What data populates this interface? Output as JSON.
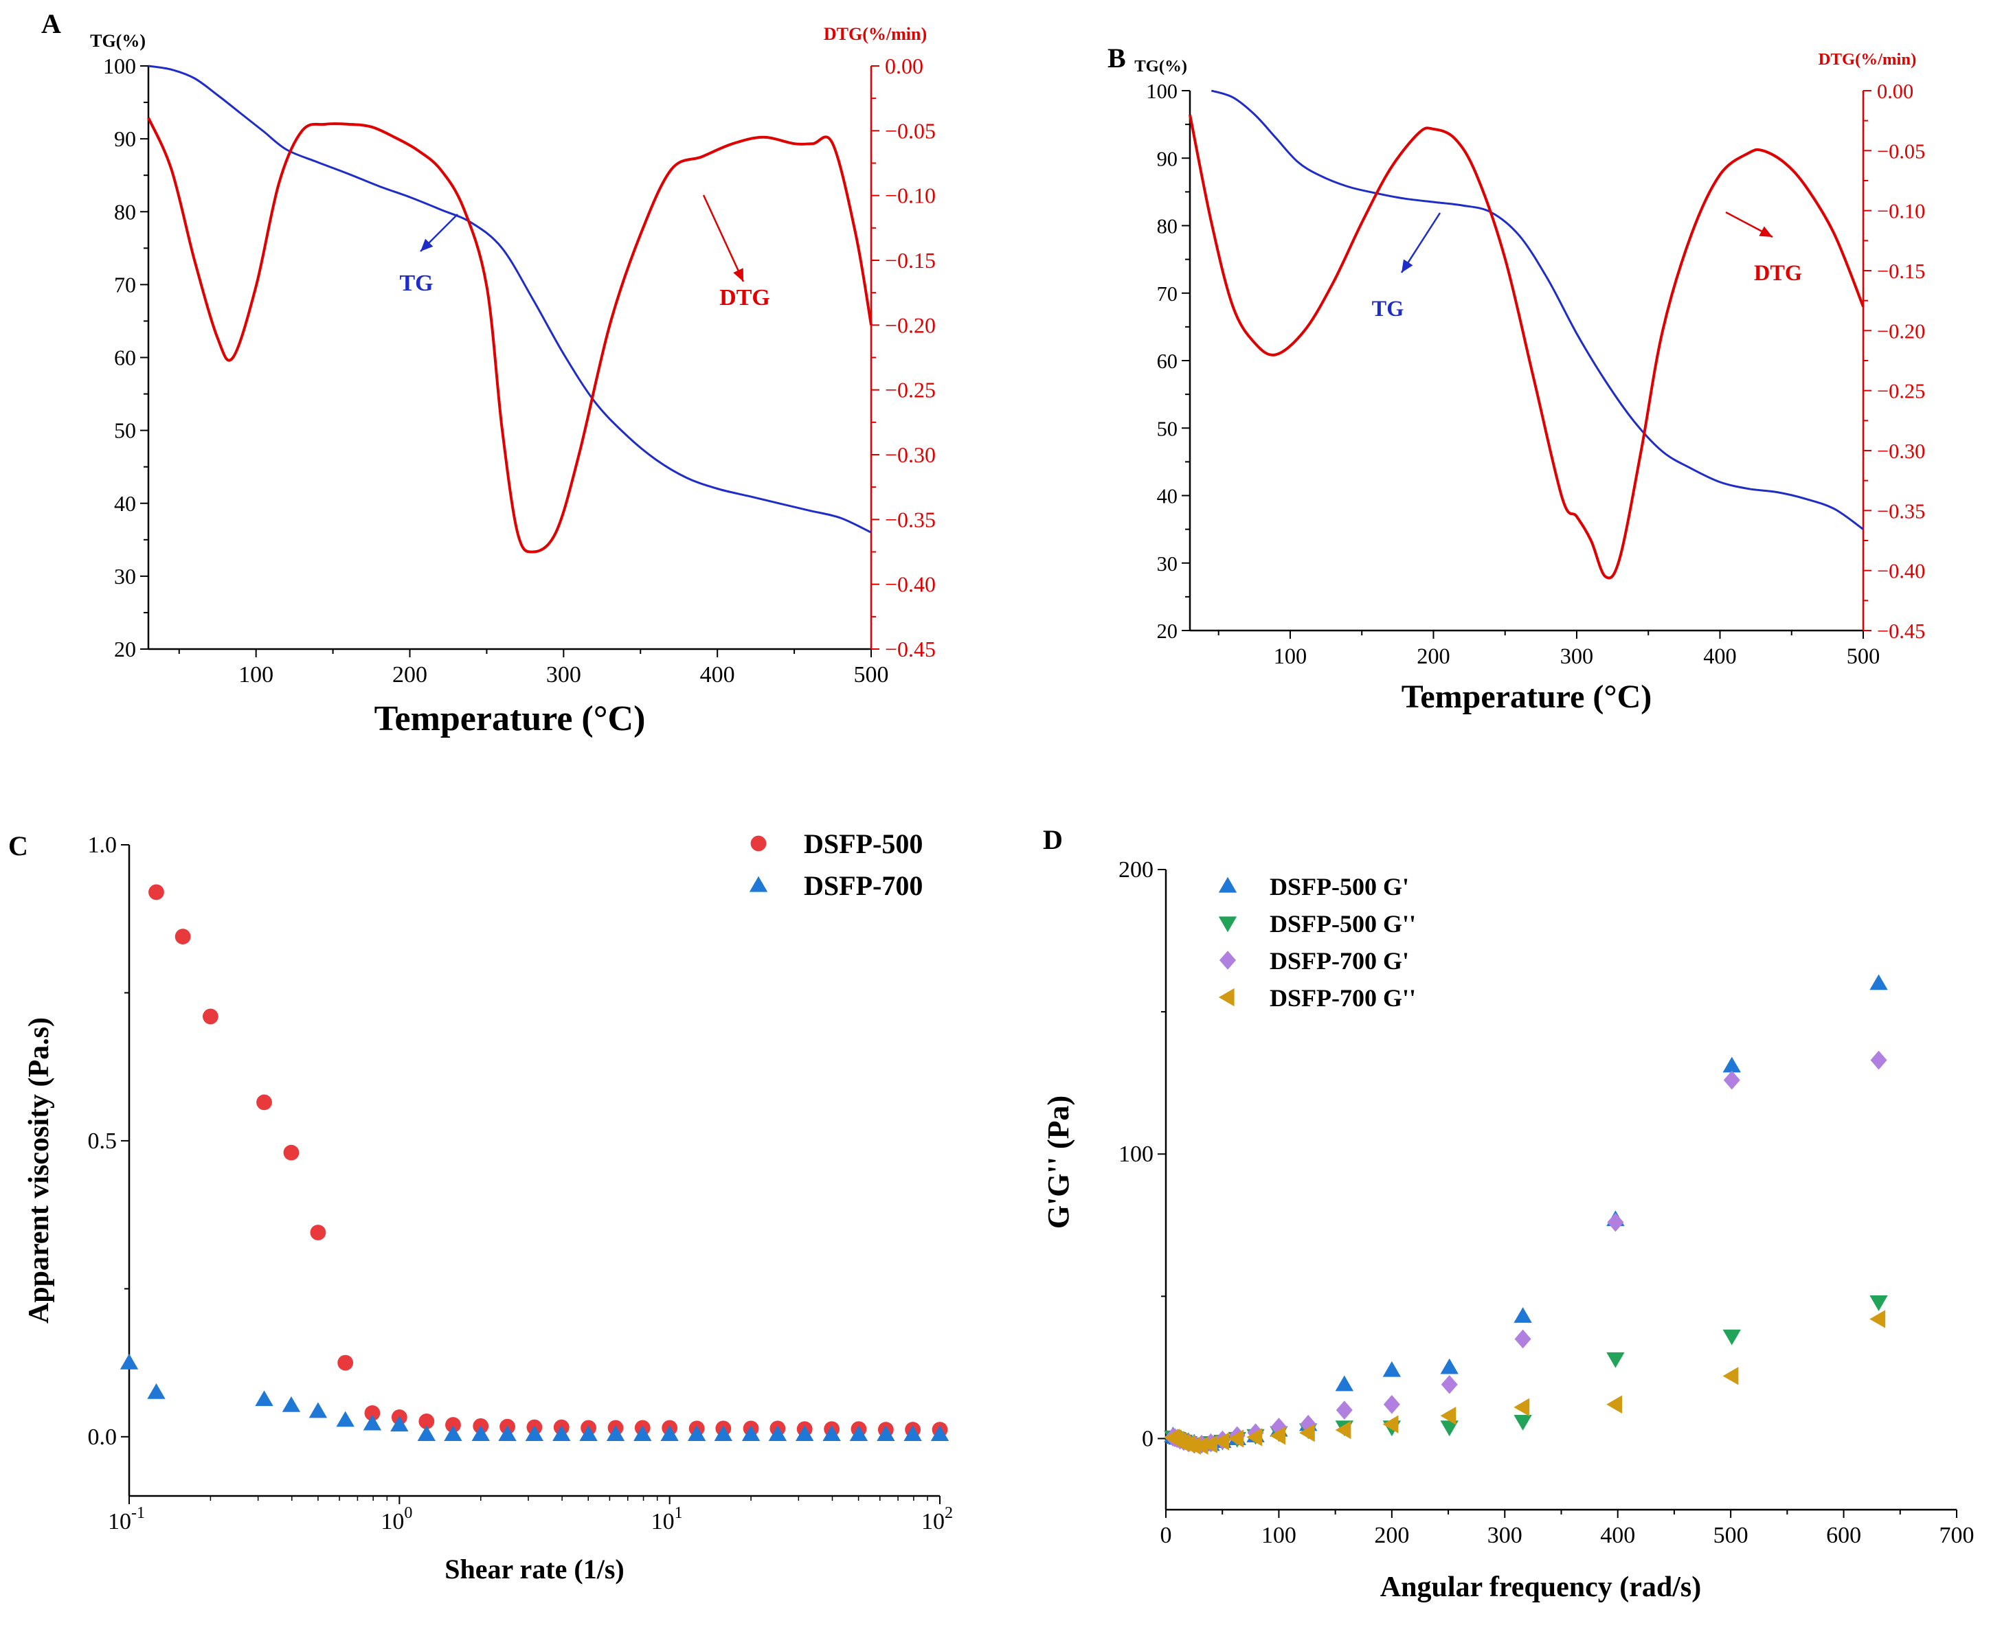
{
  "colors": {
    "tg": "#1f2dc8",
    "dtg": "#e00000",
    "dsfp500": "#e8393d",
    "dsfp700": "#1f78d6",
    "d500gp": "#1f78d6",
    "d500gpp": "#22a35a",
    "d700gp": "#b07fe0",
    "d700gpp": "#d19a10"
  },
  "chart_data": [
    {
      "panel": "A",
      "type": "line",
      "xlabel": "Temperature (°C)",
      "ylabel_left": "TG(%)",
      "ylabel_right": "DTG(%/min)",
      "xlim": [
        30,
        500
      ],
      "ylim_left": [
        20,
        100
      ],
      "ylim_right": [
        -0.45,
        0
      ],
      "xticks": [
        "100",
        "200",
        "300",
        "400",
        "500"
      ],
      "xtick_values": [
        100,
        200,
        300,
        400,
        500
      ],
      "yticks_left": [
        "20",
        "30",
        "40",
        "50",
        "60",
        "70",
        "80",
        "90",
        "100"
      ],
      "yticks_left_values": [
        20,
        30,
        40,
        50,
        60,
        70,
        80,
        90,
        100
      ],
      "yticks_right": [
        "0.00",
        "−0.05",
        "−0.10",
        "−0.15",
        "−0.20",
        "−0.25",
        "−0.30",
        "−0.35",
        "−0.40",
        "−0.45"
      ],
      "yticks_right_values": [
        0,
        -0.05,
        -0.1,
        -0.15,
        -0.2,
        -0.25,
        -0.3,
        -0.35,
        -0.4,
        -0.45
      ],
      "annotations": [
        "TG",
        "DTG"
      ],
      "series": [
        {
          "name": "TG",
          "axis": "left",
          "x": [
            30,
            45,
            60,
            75,
            90,
            105,
            120,
            140,
            160,
            180,
            200,
            220,
            240,
            260,
            280,
            300,
            320,
            340,
            360,
            380,
            400,
            420,
            440,
            460,
            480,
            500
          ],
          "y": [
            100,
            99.5,
            98.3,
            96,
            93.5,
            91,
            88.5,
            86.8,
            85.2,
            83.5,
            82,
            80.3,
            78.5,
            75,
            68,
            60.5,
            54,
            49.5,
            46,
            43.5,
            42,
            41,
            40,
            39,
            38,
            36
          ]
        },
        {
          "name": "DTG",
          "axis": "right",
          "x": [
            30,
            45,
            60,
            75,
            85,
            100,
            115,
            130,
            145,
            160,
            175,
            190,
            205,
            220,
            235,
            250,
            260,
            270,
            280,
            295,
            310,
            330,
            350,
            370,
            390,
            410,
            430,
            450,
            462,
            475,
            490,
            500
          ],
          "y": [
            -0.04,
            -0.08,
            -0.15,
            -0.21,
            -0.225,
            -0.17,
            -0.09,
            -0.05,
            -0.045,
            -0.045,
            -0.047,
            -0.055,
            -0.065,
            -0.08,
            -0.11,
            -0.17,
            -0.28,
            -0.36,
            -0.375,
            -0.36,
            -0.3,
            -0.2,
            -0.13,
            -0.08,
            -0.07,
            -0.06,
            -0.055,
            -0.06,
            -0.06,
            -0.06,
            -0.13,
            -0.2
          ]
        }
      ]
    },
    {
      "panel": "B",
      "type": "line",
      "xlabel": "Temperature (°C)",
      "ylabel_left": "TG(%)",
      "ylabel_right": "DTG(%/min)",
      "xlim": [
        30,
        500
      ],
      "ylim_left": [
        20,
        100
      ],
      "ylim_right": [
        -0.45,
        0
      ],
      "xticks": [
        "100",
        "200",
        "300",
        "400",
        "500"
      ],
      "xtick_values": [
        100,
        200,
        300,
        400,
        500
      ],
      "yticks_left": [
        "20",
        "30",
        "40",
        "50",
        "60",
        "70",
        "80",
        "90",
        "100"
      ],
      "yticks_left_values": [
        20,
        30,
        40,
        50,
        60,
        70,
        80,
        90,
        100
      ],
      "yticks_right": [
        "0.00",
        "−0.05",
        "−0.10",
        "−0.15",
        "−0.20",
        "−0.25",
        "−0.30",
        "−0.35",
        "−0.40",
        "−0.45"
      ],
      "yticks_right_values": [
        0,
        -0.05,
        -0.1,
        -0.15,
        -0.2,
        -0.25,
        -0.3,
        -0.35,
        -0.4,
        -0.45
      ],
      "annotations": [
        "TG",
        "DTG"
      ],
      "series": [
        {
          "name": "TG",
          "axis": "left",
          "x": [
            45,
            60,
            75,
            90,
            105,
            120,
            140,
            160,
            180,
            200,
            220,
            240,
            260,
            280,
            300,
            320,
            340,
            360,
            380,
            400,
            420,
            440,
            460,
            480,
            500
          ],
          "y": [
            100,
            99,
            96.5,
            93,
            89.5,
            87.5,
            85.8,
            84.8,
            84,
            83.5,
            83,
            82,
            78.5,
            72,
            64,
            57,
            51,
            46.5,
            44,
            42,
            41,
            40.5,
            39.5,
            38,
            35
          ]
        },
        {
          "name": "DTG",
          "axis": "right",
          "x": [
            30,
            45,
            60,
            75,
            90,
            110,
            130,
            150,
            170,
            190,
            200,
            215,
            230,
            250,
            270,
            290,
            300,
            310,
            320,
            330,
            345,
            360,
            380,
            400,
            420,
            430,
            445,
            460,
            480,
            500
          ],
          "y": [
            -0.02,
            -0.11,
            -0.18,
            -0.21,
            -0.22,
            -0.2,
            -0.16,
            -0.11,
            -0.065,
            -0.035,
            -0.032,
            -0.04,
            -0.07,
            -0.14,
            -0.24,
            -0.34,
            -0.355,
            -0.375,
            -0.405,
            -0.39,
            -0.3,
            -0.2,
            -0.12,
            -0.07,
            -0.052,
            -0.05,
            -0.06,
            -0.08,
            -0.12,
            -0.18
          ]
        }
      ]
    },
    {
      "panel": "C",
      "type": "scatter",
      "xscale": "log",
      "xlabel": "Shear rate (1/s)",
      "ylabel": "Apparent viscosity (Pa.s)",
      "xlim": [
        0.1,
        100
      ],
      "ylim": [
        -0.1,
        1.0
      ],
      "xtick_values": [
        0.1,
        1,
        10,
        100
      ],
      "xtick_base": "10",
      "xtick_exponents": [
        "-1",
        "0",
        "1",
        "2"
      ],
      "yticks": [
        "0.0",
        "0.5",
        "1.0"
      ],
      "ytick_values": [
        0,
        0.5,
        1.0
      ],
      "legend": "top-right",
      "series": [
        {
          "name": "DSFP-500",
          "marker": "circle",
          "x": [
            0.126,
            0.158,
            0.2,
            0.316,
            0.398,
            0.5,
            0.631,
            0.794,
            1,
            1.26,
            1.58,
            2,
            2.51,
            3.16,
            3.98,
            5.01,
            6.31,
            7.94,
            10,
            12.6,
            15.8,
            20,
            25.1,
            31.6,
            39.8,
            50.1,
            63.1,
            79.4,
            100
          ],
          "y": [
            0.92,
            0.845,
            0.71,
            0.565,
            0.48,
            0.345,
            0.125,
            0.04,
            0.033,
            0.026,
            0.02,
            0.018,
            0.017,
            0.016,
            0.016,
            0.015,
            0.015,
            0.015,
            0.015,
            0.014,
            0.014,
            0.014,
            0.014,
            0.013,
            0.013,
            0.013,
            0.012,
            0.012,
            0.012
          ]
        },
        {
          "name": "DSFP-700",
          "marker": "triangle-up",
          "x": [
            0.1,
            0.126,
            0.316,
            0.398,
            0.5,
            0.631,
            0.794,
            1,
            1.26,
            1.58,
            2,
            2.51,
            3.16,
            3.98,
            5.01,
            6.31,
            7.94,
            10,
            12.6,
            15.8,
            20,
            25.1,
            31.6,
            39.8,
            50.1,
            63.1,
            79.4,
            100
          ],
          "y": [
            0.125,
            0.075,
            0.063,
            0.053,
            0.043,
            0.028,
            0.022,
            0.02,
            0.004,
            0.004,
            0.004,
            0.004,
            0.004,
            0.004,
            0.004,
            0.004,
            0.004,
            0.004,
            0.004,
            0.004,
            0.004,
            0.004,
            0.004,
            0.004,
            0.004,
            0.004,
            0.004,
            0.004
          ]
        }
      ]
    },
    {
      "panel": "D",
      "type": "scatter",
      "xlabel": "Angular frequency  (rad/s)",
      "ylabel": "G'G'' (Pa)",
      "xlim": [
        0,
        700
      ],
      "ylim": [
        -25,
        200
      ],
      "xticks": [
        "0",
        "100",
        "200",
        "300",
        "400",
        "500",
        "600",
        "700"
      ],
      "xtick_values": [
        0,
        100,
        200,
        300,
        400,
        500,
        600,
        700
      ],
      "yticks": [
        "0",
        "100",
        "200"
      ],
      "ytick_values": [
        0,
        100,
        200
      ],
      "legend": "top-left",
      "series": [
        {
          "name": "DSFP-500 G'",
          "marker": "triangle-up",
          "x": [
            6.3,
            7.9,
            10,
            12.6,
            15.8,
            20,
            25.1,
            31.6,
            39.8,
            50.1,
            63.1,
            79.4,
            100,
            126,
            158,
            200,
            251,
            316,
            398,
            501,
            631
          ],
          "y": [
            1,
            0.5,
            0.2,
            0,
            -0.5,
            -1,
            -1.5,
            -2,
            -2,
            -1,
            0,
            1,
            3,
            5,
            19,
            24,
            25,
            43,
            77,
            131,
            160
          ]
        },
        {
          "name": "DSFP-500 G''",
          "marker": "triangle-down",
          "x": [
            6.3,
            7.9,
            10,
            12.6,
            15.8,
            20,
            25.1,
            31.6,
            39.8,
            50.1,
            63.1,
            79.4,
            100,
            126,
            158,
            200,
            251,
            316,
            398,
            501,
            631
          ],
          "y": [
            0.5,
            0.2,
            0,
            -0.5,
            -1,
            -1.5,
            -2,
            -2,
            -1.5,
            -1,
            0,
            1,
            2,
            3,
            4,
            4,
            4,
            6,
            28,
            36,
            48
          ]
        },
        {
          "name": "DSFP-700 G'",
          "marker": "diamond",
          "x": [
            6.3,
            7.9,
            10,
            12.6,
            15.8,
            20,
            25.1,
            31.6,
            39.8,
            50.1,
            63.1,
            79.4,
            100,
            126,
            158,
            200,
            251,
            316,
            398,
            501,
            631
          ],
          "y": [
            0.5,
            0.3,
            0,
            -0.5,
            -1,
            -1.5,
            -2,
            -2,
            -1.5,
            -0.5,
            1,
            2,
            4,
            5,
            10,
            12,
            19,
            35,
            76,
            126,
            133
          ]
        },
        {
          "name": "DSFP-700 G''",
          "marker": "triangle-left",
          "x": [
            6.3,
            7.9,
            10,
            12.6,
            15.8,
            20,
            25.1,
            31.6,
            39.8,
            50.1,
            63.1,
            79.4,
            100,
            126,
            158,
            200,
            251,
            316,
            398,
            501,
            631
          ],
          "y": [
            0.3,
            0,
            -0.5,
            -1,
            -1.5,
            -2,
            -2.5,
            -2.5,
            -2,
            -1,
            0,
            0.5,
            1,
            2,
            3,
            5,
            8,
            11,
            12,
            22,
            42
          ]
        }
      ]
    }
  ],
  "panel_labels": [
    "A",
    "B",
    "C",
    "D"
  ]
}
